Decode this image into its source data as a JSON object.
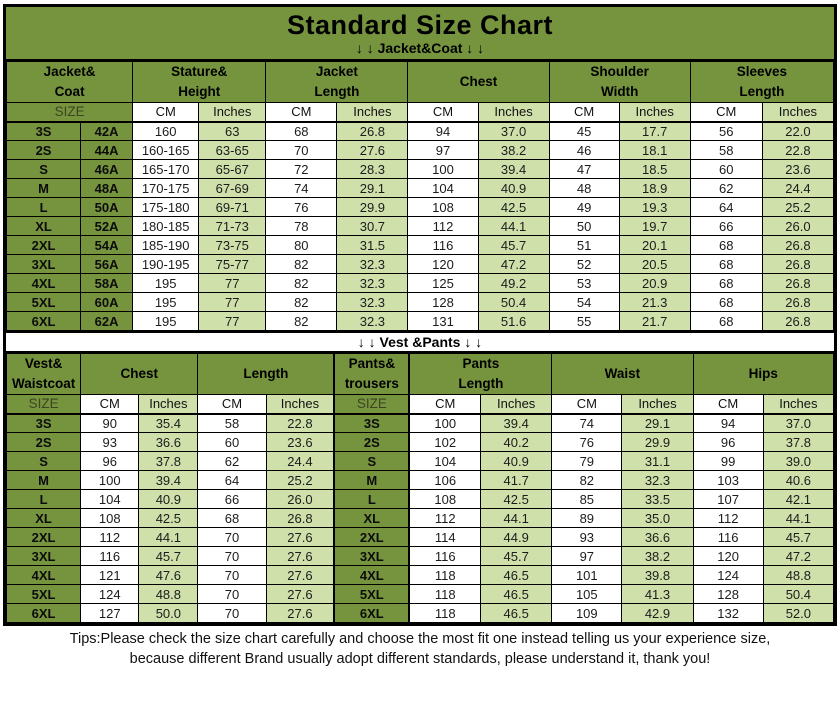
{
  "title": "Standard Size Chart",
  "sections": {
    "jacket_coat_label": "↓ ↓  Jacket&Coat ↓ ↓",
    "vest_pants_label": "↓ ↓  Vest &Pants ↓ ↓"
  },
  "colors": {
    "green": "#76943e",
    "light_green": "#cfe0ab",
    "border": "#000000",
    "background": "#ffffff"
  },
  "jacket_table": {
    "header_groups": [
      {
        "label": "Jacket&\nCoat",
        "span": 2
      },
      {
        "label": "Stature&\nHeight",
        "span": 2
      },
      {
        "label": "Jacket\nLength",
        "span": 2
      },
      {
        "label": "Chest",
        "span": 2
      },
      {
        "label": "Shoulder\nWidth",
        "span": 2
      },
      {
        "label": "Sleeves\nLength",
        "span": 2
      }
    ],
    "subheader": [
      {
        "label": "SIZE",
        "span": 2,
        "kind": "size"
      },
      {
        "label": "CM",
        "span": 1,
        "kind": "cm"
      },
      {
        "label": "Inches",
        "span": 1,
        "kind": "inches"
      },
      {
        "label": "CM",
        "span": 1,
        "kind": "cm"
      },
      {
        "label": "Inches",
        "span": 1,
        "kind": "inches"
      },
      {
        "label": "CM",
        "span": 1,
        "kind": "cm"
      },
      {
        "label": "Inches",
        "span": 1,
        "kind": "inches"
      },
      {
        "label": "CM",
        "span": 1,
        "kind": "cm"
      },
      {
        "label": "Inches",
        "span": 1,
        "kind": "inches"
      },
      {
        "label": "CM",
        "span": 1,
        "kind": "cm"
      },
      {
        "label": "Inches",
        "span": 1,
        "kind": "inches"
      }
    ],
    "col_kinds": [
      "size",
      "size",
      "cm",
      "inches",
      "cm",
      "inches",
      "cm",
      "inches",
      "cm",
      "inches",
      "cm",
      "inches"
    ],
    "rows": [
      [
        "3S",
        "42A",
        "160",
        "63",
        "68",
        "26.8",
        "94",
        "37.0",
        "45",
        "17.7",
        "56",
        "22.0"
      ],
      [
        "2S",
        "44A",
        "160-165",
        "63-65",
        "70",
        "27.6",
        "97",
        "38.2",
        "46",
        "18.1",
        "58",
        "22.8"
      ],
      [
        "S",
        "46A",
        "165-170",
        "65-67",
        "72",
        "28.3",
        "100",
        "39.4",
        "47",
        "18.5",
        "60",
        "23.6"
      ],
      [
        "M",
        "48A",
        "170-175",
        "67-69",
        "74",
        "29.1",
        "104",
        "40.9",
        "48",
        "18.9",
        "62",
        "24.4"
      ],
      [
        "L",
        "50A",
        "175-180",
        "69-71",
        "76",
        "29.9",
        "108",
        "42.5",
        "49",
        "19.3",
        "64",
        "25.2"
      ],
      [
        "XL",
        "52A",
        "180-185",
        "71-73",
        "78",
        "30.7",
        "112",
        "44.1",
        "50",
        "19.7",
        "66",
        "26.0"
      ],
      [
        "2XL",
        "54A",
        "185-190",
        "73-75",
        "80",
        "31.5",
        "116",
        "45.7",
        "51",
        "20.1",
        "68",
        "26.8"
      ],
      [
        "3XL",
        "56A",
        "190-195",
        "75-77",
        "82",
        "32.3",
        "120",
        "47.2",
        "52",
        "20.5",
        "68",
        "26.8"
      ],
      [
        "4XL",
        "58A",
        "195",
        "77",
        "82",
        "32.3",
        "125",
        "49.2",
        "53",
        "20.9",
        "68",
        "26.8"
      ],
      [
        "5XL",
        "60A",
        "195",
        "77",
        "82",
        "32.3",
        "128",
        "50.4",
        "54",
        "21.3",
        "68",
        "26.8"
      ],
      [
        "6XL",
        "62A",
        "195",
        "77",
        "82",
        "32.3",
        "131",
        "51.6",
        "55",
        "21.7",
        "68",
        "26.8"
      ]
    ]
  },
  "vest_pants_table": {
    "header_groups": [
      {
        "label": "Vest&\nWaistcoat",
        "span": 1
      },
      {
        "label": "Chest",
        "span": 2
      },
      {
        "label": "Length",
        "span": 2
      },
      {
        "label": "Pants&\ntrousers",
        "span": 1
      },
      {
        "label": "Pants\nLength",
        "span": 2
      },
      {
        "label": "Waist",
        "span": 2
      },
      {
        "label": "Hips",
        "span": 2
      }
    ],
    "subheader": [
      {
        "label": "SIZE",
        "span": 1,
        "kind": "size"
      },
      {
        "label": "CM",
        "span": 1,
        "kind": "cm"
      },
      {
        "label": "Inches",
        "span": 1,
        "kind": "inches"
      },
      {
        "label": "CM",
        "span": 1,
        "kind": "cm"
      },
      {
        "label": "Inches",
        "span": 1,
        "kind": "inches"
      },
      {
        "label": "SIZE",
        "span": 1,
        "kind": "size"
      },
      {
        "label": "CM",
        "span": 1,
        "kind": "cm"
      },
      {
        "label": "Inches",
        "span": 1,
        "kind": "inches"
      },
      {
        "label": "CM",
        "span": 1,
        "kind": "cm"
      },
      {
        "label": "Inches",
        "span": 1,
        "kind": "inches"
      },
      {
        "label": "CM",
        "span": 1,
        "kind": "cm"
      },
      {
        "label": "Inches",
        "span": 1,
        "kind": "inches"
      }
    ],
    "col_kinds": [
      "size",
      "cm",
      "inches",
      "cm",
      "inches",
      "size",
      "cm",
      "inches",
      "cm",
      "inches",
      "cm",
      "inches"
    ],
    "rows": [
      [
        "3S",
        "90",
        "35.4",
        "58",
        "22.8",
        "3S",
        "100",
        "39.4",
        "74",
        "29.1",
        "94",
        "37.0"
      ],
      [
        "2S",
        "93",
        "36.6",
        "60",
        "23.6",
        "2S",
        "102",
        "40.2",
        "76",
        "29.9",
        "96",
        "37.8"
      ],
      [
        "S",
        "96",
        "37.8",
        "62",
        "24.4",
        "S",
        "104",
        "40.9",
        "79",
        "31.1",
        "99",
        "39.0"
      ],
      [
        "M",
        "100",
        "39.4",
        "64",
        "25.2",
        "M",
        "106",
        "41.7",
        "82",
        "32.3",
        "103",
        "40.6"
      ],
      [
        "L",
        "104",
        "40.9",
        "66",
        "26.0",
        "L",
        "108",
        "42.5",
        "85",
        "33.5",
        "107",
        "42.1"
      ],
      [
        "XL",
        "108",
        "42.5",
        "68",
        "26.8",
        "XL",
        "112",
        "44.1",
        "89",
        "35.0",
        "112",
        "44.1"
      ],
      [
        "2XL",
        "112",
        "44.1",
        "70",
        "27.6",
        "2XL",
        "114",
        "44.9",
        "93",
        "36.6",
        "116",
        "45.7"
      ],
      [
        "3XL",
        "116",
        "45.7",
        "70",
        "27.6",
        "3XL",
        "116",
        "45.7",
        "97",
        "38.2",
        "120",
        "47.2"
      ],
      [
        "4XL",
        "121",
        "47.6",
        "70",
        "27.6",
        "4XL",
        "118",
        "46.5",
        "101",
        "39.8",
        "124",
        "48.8"
      ],
      [
        "5XL",
        "124",
        "48.8",
        "70",
        "27.6",
        "5XL",
        "118",
        "46.5",
        "105",
        "41.3",
        "128",
        "50.4"
      ],
      [
        "6XL",
        "127",
        "50.0",
        "70",
        "27.6",
        "6XL",
        "118",
        "46.5",
        "109",
        "42.9",
        "132",
        "52.0"
      ]
    ]
  },
  "tips": {
    "line1": "Tips:Please check the size chart carefully and choose the most fit one instead telling us your experience size,",
    "line2": "because different Brand usually adopt different standards, please understand it, thank you!"
  }
}
